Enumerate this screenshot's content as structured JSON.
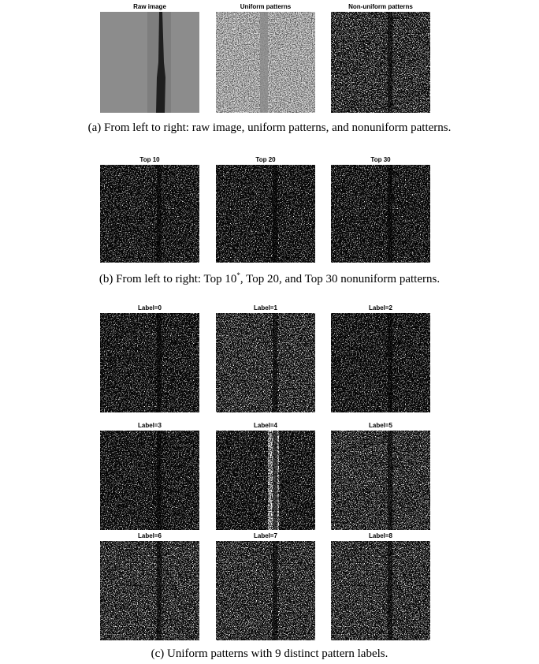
{
  "figure": {
    "a": {
      "titles": [
        "Raw image",
        "Uniform patterns",
        "Non-uniform patterns"
      ],
      "caption": "(a) From left to right: raw image, uniform patterns, and nonuniform patterns."
    },
    "b": {
      "titles": [
        "Top 10",
        "Top 20",
        "Top 30"
      ],
      "caption": [
        "(b) From left to right: Top 10",
        "*",
        ", Top 20, and Top 30 nonuniform patterns."
      ]
    },
    "c": {
      "titles": [
        "Label=0",
        "Label=1",
        "Label=2",
        "Label=3",
        "Label=4",
        "Label=5",
        "Label=6",
        "Label=7",
        "Label=8"
      ],
      "caption": "(c) Uniform patterns with 9 distinct pattern labels."
    }
  }
}
